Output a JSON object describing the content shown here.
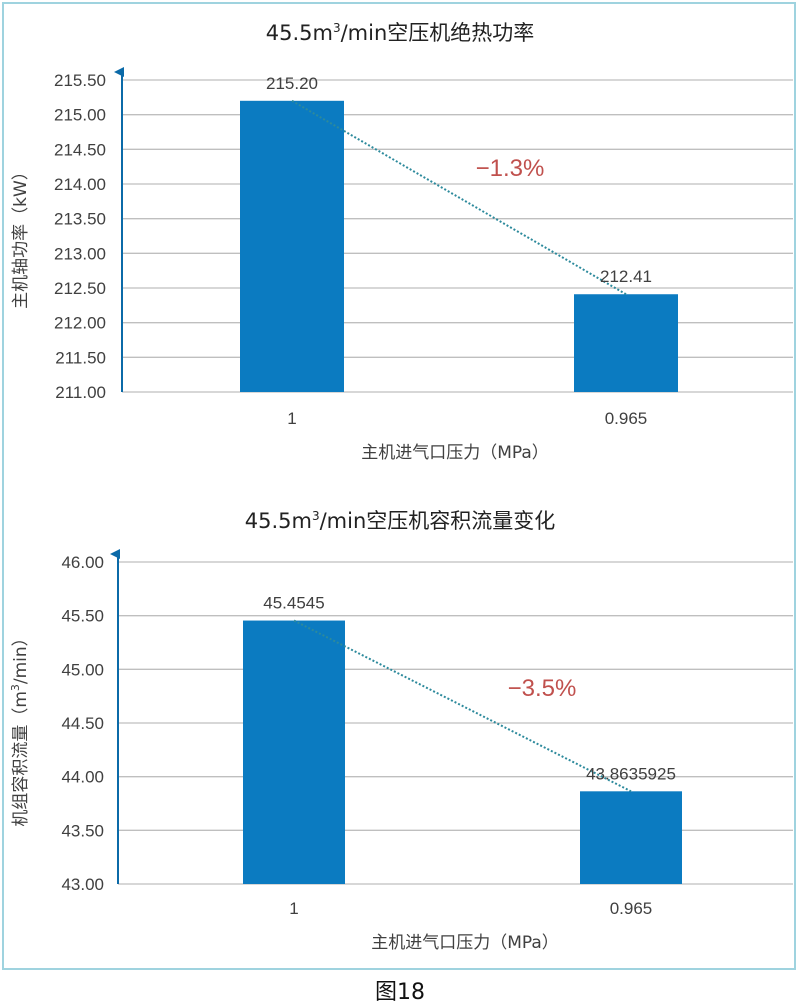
{
  "colors": {
    "bar": "#0b7bc1",
    "grid": "#bfbfbf",
    "axis": "#0b6aa8",
    "trend": "#2d8a9c",
    "annotation": "#c0504d",
    "frame": "#9fd3df"
  },
  "caption": "图18",
  "chart_data": [
    {
      "type": "bar",
      "title_main": "45.5m",
      "title_sup": "3",
      "title_tail": "/min空压机绝热功率",
      "xlabel": "主机进气口压力（MPa）",
      "ylabel": "主机轴功率（kW）",
      "categories": [
        "1",
        "0.965"
      ],
      "values": [
        215.2,
        212.41
      ],
      "value_labels": [
        "215.20",
        "212.41"
      ],
      "ylim": [
        211.0,
        215.5
      ],
      "yticks": [
        "211.00",
        "211.50",
        "212.00",
        "212.50",
        "213.00",
        "213.50",
        "214.00",
        "214.50",
        "215.00",
        "215.50"
      ],
      "trendline": "linear (dotted)",
      "annotation": "−1.3%",
      "grid": true
    },
    {
      "type": "bar",
      "title_main": "45.5m",
      "title_sup": "3",
      "title_tail": "/min空压机容积流量变化",
      "xlabel": "主机进气口压力（MPa）",
      "ylabel_main": "机组容积流量（m",
      "ylabel_sup": "3",
      "ylabel_tail": "/min）",
      "categories": [
        "1",
        "0.965"
      ],
      "values": [
        45.4545,
        43.8635925
      ],
      "value_labels": [
        "45.4545",
        "43.8635925"
      ],
      "ylim": [
        43.0,
        46.0
      ],
      "yticks": [
        "43.00",
        "43.50",
        "44.00",
        "44.50",
        "45.00",
        "45.50",
        "46.00"
      ],
      "trendline": "linear (dotted)",
      "annotation": "−3.5%",
      "grid": true
    }
  ]
}
